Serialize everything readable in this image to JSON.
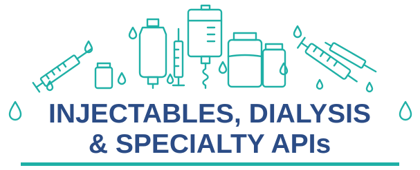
{
  "title": {
    "line1": "INJECTABLES, DIALYSIS",
    "line2": "& SPECIALTY APIs"
  }
}
